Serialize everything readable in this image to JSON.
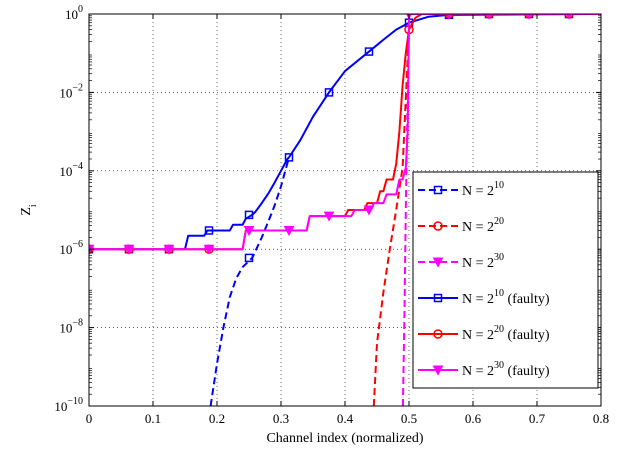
{
  "chart_data": {
    "type": "line",
    "title": "",
    "xlabel": "Channel index (normalized)",
    "ylabel": {
      "base": "Z",
      "subscript": "i"
    },
    "xlim": [
      0,
      0.8
    ],
    "ylim": [
      1e-10,
      1
    ],
    "yscale": "log",
    "grid": true,
    "legend_position": "right",
    "xticks": [
      0,
      0.1,
      0.2,
      0.3,
      0.4,
      0.5,
      0.6,
      0.7,
      0.8
    ],
    "xtick_labels": [
      "0",
      "0.1",
      "0.2",
      "0.3",
      "0.4",
      "0.5",
      "0.6",
      "0.7",
      "0.8"
    ],
    "yticks": [
      {
        "value": 1e-10,
        "base": "10",
        "exp": "−10"
      },
      {
        "value": 1e-08,
        "base": "10",
        "exp": "−8"
      },
      {
        "value": 1e-06,
        "base": "10",
        "exp": "−6"
      },
      {
        "value": 0.0001,
        "base": "10",
        "exp": "−4"
      },
      {
        "value": 0.01,
        "base": "10",
        "exp": "−2"
      },
      {
        "value": 1,
        "base": "10",
        "exp": "0"
      }
    ],
    "series": [
      {
        "name": {
          "pre": "N = 2",
          "exp": "10",
          "post": ""
        },
        "color": "#0000ff",
        "dash": true,
        "marker": "square",
        "points": [
          [
            0.19,
            1e-10
          ],
          [
            0.2,
            1.2e-09
          ],
          [
            0.21,
            1e-08
          ],
          [
            0.22,
            6e-08
          ],
          [
            0.23,
            1.8e-07
          ],
          [
            0.24,
            3.5e-07
          ],
          [
            0.255,
            6e-07
          ],
          [
            0.27,
            2e-06
          ],
          [
            0.28,
            5e-06
          ],
          [
            0.29,
            1.3e-05
          ],
          [
            0.3,
            4e-05
          ],
          [
            0.3125,
            0.00022
          ]
        ],
        "markers": [
          [
            0.25,
            6e-07
          ]
        ]
      },
      {
        "name": {
          "pre": "N = 2",
          "exp": "20",
          "post": ""
        },
        "color": "#ff0000",
        "dash": true,
        "marker": "circle",
        "points": [
          [
            0.445,
            1e-10
          ],
          [
            0.45,
            4e-09
          ],
          [
            0.46,
            8e-08
          ],
          [
            0.47,
            1e-06
          ],
          [
            0.48,
            1e-05
          ],
          [
            0.49,
            0.00012
          ],
          [
            0.5,
            0.4
          ]
        ],
        "markers": []
      },
      {
        "name": {
          "pre": "N = 2",
          "exp": "30",
          "post": ""
        },
        "color": "#ff00ff",
        "dash": true,
        "marker": "triangle",
        "points": [
          [
            0.4905,
            1e-10
          ],
          [
            0.493,
            3e-08
          ],
          [
            0.495,
            1e-05
          ],
          [
            0.497,
            0.001
          ],
          [
            0.5,
            0.6
          ]
        ],
        "markers": []
      },
      {
        "name": {
          "pre": "N = 2",
          "exp": "10",
          "post": " (faulty)"
        },
        "color": "#0000ff",
        "dash": false,
        "marker": "square",
        "points": [
          [
            0,
            1e-06
          ],
          [
            0.15,
            1e-06
          ],
          [
            0.155,
            2.2e-06
          ],
          [
            0.18,
            2.2e-06
          ],
          [
            0.185,
            3e-06
          ],
          [
            0.22,
            3e-06
          ],
          [
            0.225,
            4.2e-06
          ],
          [
            0.24,
            4.2e-06
          ],
          [
            0.245,
            6e-06
          ],
          [
            0.255,
            7.5e-06
          ],
          [
            0.26,
            9e-06
          ],
          [
            0.27,
            1.5e-05
          ],
          [
            0.28,
            2.6e-05
          ],
          [
            0.29,
            5e-05
          ],
          [
            0.3,
            0.0001
          ],
          [
            0.31,
            0.0002
          ],
          [
            0.3125,
            0.00022
          ],
          [
            0.33,
            0.0006
          ],
          [
            0.35,
            0.0024
          ],
          [
            0.375,
            0.01
          ],
          [
            0.4,
            0.035
          ],
          [
            0.4375,
            0.11
          ],
          [
            0.46,
            0.22
          ],
          [
            0.48,
            0.4
          ],
          [
            0.5,
            0.6
          ],
          [
            0.53,
            0.85
          ],
          [
            0.5625,
            0.95
          ],
          [
            0.8,
            1
          ]
        ],
        "markers": [
          [
            0,
            1e-06
          ],
          [
            0.0625,
            1e-06
          ],
          [
            0.125,
            1e-06
          ],
          [
            0.1875,
            3e-06
          ],
          [
            0.25,
            7.5e-06
          ],
          [
            0.3125,
            0.00022
          ],
          [
            0.375,
            0.01
          ],
          [
            0.4375,
            0.11
          ],
          [
            0.5,
            0.6
          ],
          [
            0.5625,
            0.95
          ],
          [
            0.625,
            1
          ],
          [
            0.6875,
            1
          ],
          [
            0.75,
            1
          ]
        ]
      },
      {
        "name": {
          "pre": "N = 2",
          "exp": "20",
          "post": " (faulty)"
        },
        "color": "#ff0000",
        "dash": false,
        "marker": "circle",
        "points": [
          [
            0,
            1e-06
          ],
          [
            0.24,
            1e-06
          ],
          [
            0.245,
            3e-06
          ],
          [
            0.34,
            3e-06
          ],
          [
            0.345,
            7e-06
          ],
          [
            0.4,
            7e-06
          ],
          [
            0.405,
            1e-05
          ],
          [
            0.43,
            1e-05
          ],
          [
            0.435,
            1.5e-05
          ],
          [
            0.45,
            1.5e-05
          ],
          [
            0.455,
            3e-05
          ],
          [
            0.46,
            3e-05
          ],
          [
            0.465,
            6e-05
          ],
          [
            0.475,
            6e-05
          ],
          [
            0.48,
            0.00015
          ],
          [
            0.485,
            0.001
          ],
          [
            0.49,
            0.015
          ],
          [
            0.495,
            0.1
          ],
          [
            0.5,
            0.4
          ],
          [
            0.51,
            0.8
          ],
          [
            0.52,
            1
          ],
          [
            0.8,
            1
          ]
        ],
        "markers": [
          [
            0,
            1e-06
          ],
          [
            0.0625,
            1e-06
          ],
          [
            0.125,
            1e-06
          ],
          [
            0.1875,
            1e-06
          ],
          [
            0.5,
            0.4
          ],
          [
            0.5625,
            1
          ],
          [
            0.625,
            1
          ],
          [
            0.6875,
            1
          ],
          [
            0.75,
            1
          ]
        ]
      },
      {
        "name": {
          "pre": "N = 2",
          "exp": "30",
          "post": " (faulty)"
        },
        "color": "#ff00ff",
        "dash": false,
        "marker": "triangle",
        "points": [
          [
            0,
            1e-06
          ],
          [
            0.24,
            1e-06
          ],
          [
            0.245,
            3e-06
          ],
          [
            0.34,
            3e-06
          ],
          [
            0.345,
            7e-06
          ],
          [
            0.41,
            7e-06
          ],
          [
            0.415,
            1e-05
          ],
          [
            0.44,
            1e-05
          ],
          [
            0.445,
            1.5e-05
          ],
          [
            0.46,
            1.5e-05
          ],
          [
            0.465,
            2.5e-05
          ],
          [
            0.48,
            2.5e-05
          ],
          [
            0.485,
            6e-05
          ],
          [
            0.49,
            6e-05
          ],
          [
            0.495,
            0.00012
          ],
          [
            0.498,
            0.001
          ],
          [
            0.5,
            0.6
          ],
          [
            0.5,
            1
          ],
          [
            0.8,
            1
          ]
        ],
        "markers": [
          [
            0,
            1e-06
          ],
          [
            0.0625,
            1e-06
          ],
          [
            0.125,
            1e-06
          ],
          [
            0.1875,
            1e-06
          ],
          [
            0.25,
            3e-06
          ],
          [
            0.3125,
            3e-06
          ],
          [
            0.375,
            7e-06
          ],
          [
            0.4375,
            1e-05
          ],
          [
            0.5,
            1
          ],
          [
            0.5625,
            1
          ],
          [
            0.625,
            1
          ],
          [
            0.6875,
            1
          ],
          [
            0.75,
            1
          ]
        ]
      }
    ]
  }
}
